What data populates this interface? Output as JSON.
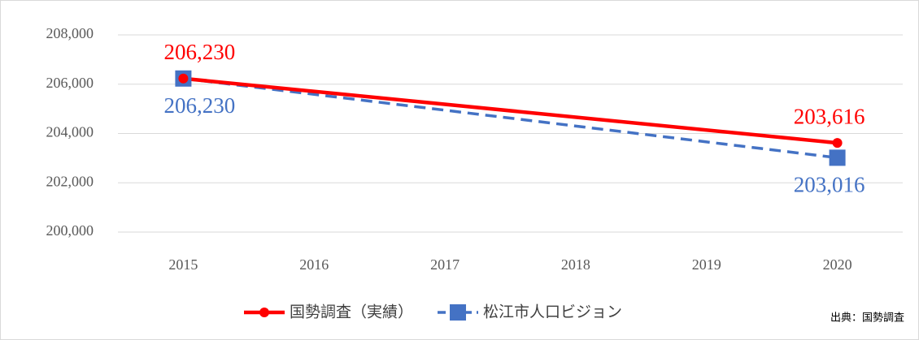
{
  "chart_data": {
    "type": "line",
    "x": [
      2015,
      2020
    ],
    "xlim": [
      2014.5,
      2020.5
    ],
    "xticks": [
      2015,
      2016,
      2017,
      2018,
      2019,
      2020
    ],
    "ylim": [
      200000,
      208000
    ],
    "yticks": [
      {
        "value": 200000,
        "label": "200,000"
      },
      {
        "value": 202000,
        "label": "202,000"
      },
      {
        "value": 204000,
        "label": "204,000"
      },
      {
        "value": 206000,
        "label": "206,000"
      },
      {
        "value": 208000,
        "label": "208,000"
      }
    ],
    "grid": true,
    "series": [
      {
        "name": "国勢調査（実績）",
        "color": "#ff0000",
        "values": [
          206230,
          203616
        ],
        "value_labels": [
          "206,230",
          "203,616"
        ]
      },
      {
        "name": "松江市人口ビジョン",
        "color": "#4472c4",
        "values": [
          206230,
          203016
        ],
        "value_labels": [
          "206,230",
          "203,016"
        ]
      }
    ],
    "source": "出典：国勢調査"
  }
}
